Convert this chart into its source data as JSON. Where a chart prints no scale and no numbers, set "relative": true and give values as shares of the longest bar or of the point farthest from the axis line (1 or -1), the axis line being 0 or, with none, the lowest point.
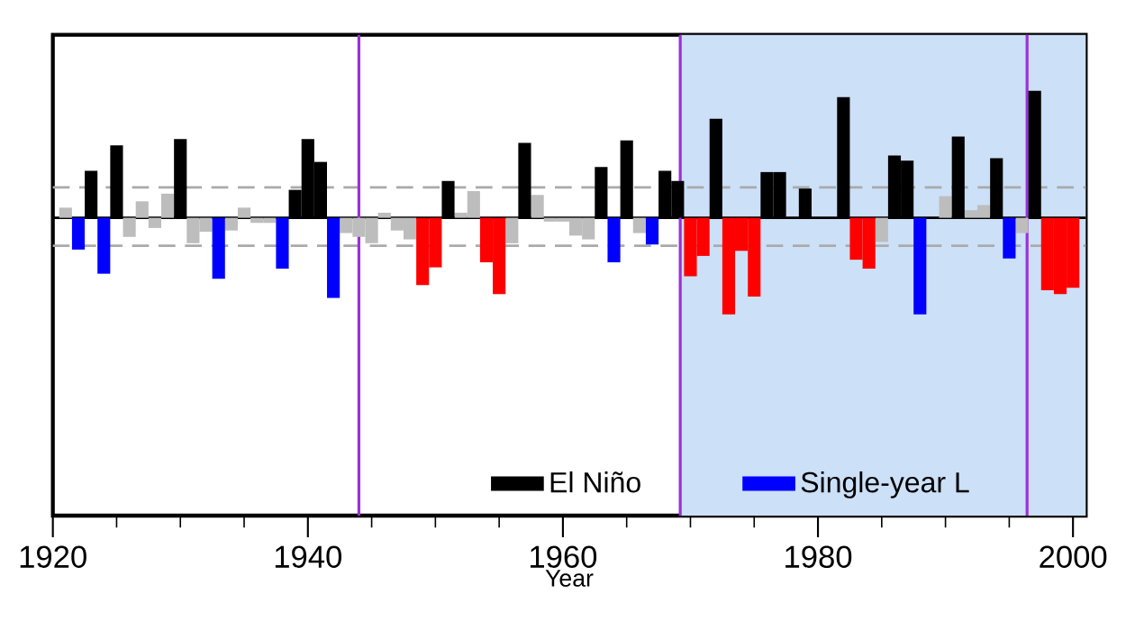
{
  "chart_data": {
    "type": "bar",
    "relative": true,
    "xlabel": "Year",
    "xlim": [
      1920,
      2001
    ],
    "xticks": [
      1920,
      1940,
      1960,
      1980,
      2000
    ],
    "legend": "bottom right",
    "series": [
      {
        "color": "#bdbdbd",
        "x": [
          1921,
          1926,
          1927,
          1928,
          1929,
          1931,
          1932,
          1934,
          1935,
          1936,
          1937,
          1943,
          1944,
          1945,
          1946,
          1947,
          1948,
          1952,
          1953,
          1956,
          1958,
          1959,
          1960,
          1961,
          1962,
          1966,
          1985,
          1990,
          1992,
          1993,
          1996
        ],
        "values": [
          0.08,
          -0.15,
          0.13,
          -0.08,
          0.19,
          -0.2,
          -0.11,
          -0.1,
          0.08,
          -0.04,
          -0.04,
          -0.12,
          -0.15,
          -0.2,
          0.04,
          -0.1,
          -0.17,
          0.04,
          0.21,
          -0.2,
          0.18,
          -0.03,
          -0.03,
          -0.14,
          -0.17,
          -0.12,
          -0.19,
          0.17,
          0.06,
          0.1,
          -0.12
        ]
      },
      {
        "name": "El Niño",
        "color": "#000000",
        "x": [
          1923,
          1925,
          1930,
          1939,
          1940,
          1941,
          1951,
          1957,
          1963,
          1965,
          1968,
          1969,
          1972,
          1976,
          1977,
          1979,
          1982,
          1986,
          1987,
          1991,
          1994,
          1997
        ],
        "values": [
          0.37,
          0.57,
          0.62,
          0.22,
          0.62,
          0.44,
          0.29,
          0.59,
          0.4,
          0.61,
          0.37,
          0.29,
          0.78,
          0.36,
          0.36,
          0.23,
          0.95,
          0.49,
          0.45,
          0.64,
          0.47,
          1.0
        ]
      },
      {
        "name": "Single-year L",
        "color": "#0000ff",
        "x": [
          1922,
          1924,
          1933,
          1938,
          1942,
          1964,
          1967,
          1988,
          1995
        ],
        "values": [
          -0.25,
          -0.44,
          -0.48,
          -0.4,
          -0.63,
          -0.35,
          -0.21,
          -0.76,
          -0.32
        ]
      },
      {
        "color": "#ff0000",
        "x": [
          1949,
          1950,
          1954,
          1955,
          1970,
          1971,
          1973,
          1974,
          1975,
          1983,
          1984,
          1998,
          1999,
          2000
        ],
        "values": [
          -0.53,
          -0.39,
          -0.35,
          -0.6,
          -0.46,
          -0.3,
          -0.76,
          -0.26,
          -0.62,
          -0.33,
          -0.4,
          -0.57,
          -0.6,
          -0.55
        ]
      }
    ],
    "bands": [
      {
        "axis": "x",
        "from": 1969.2,
        "to": 2001,
        "color": "#cce0f8"
      }
    ],
    "ref_lines": [
      {
        "axis": "y",
        "value": 0.24,
        "color": "#aaaaaa",
        "line_style": "dashed"
      },
      {
        "axis": "y",
        "value": -0.22,
        "color": "#aaaaaa",
        "line_style": "dashed"
      },
      {
        "axis": "y",
        "value": 0,
        "color": "#000000",
        "line_style": "solid"
      },
      {
        "axis": "x",
        "value": 1944,
        "color": "#9b30d9",
        "line_style": "solid"
      },
      {
        "axis": "x",
        "value": 1969.2,
        "color": "#9b30d9",
        "line_style": "solid"
      },
      {
        "axis": "x",
        "value": 1996.4,
        "color": "#9b30d9",
        "line_style": "solid"
      }
    ]
  }
}
